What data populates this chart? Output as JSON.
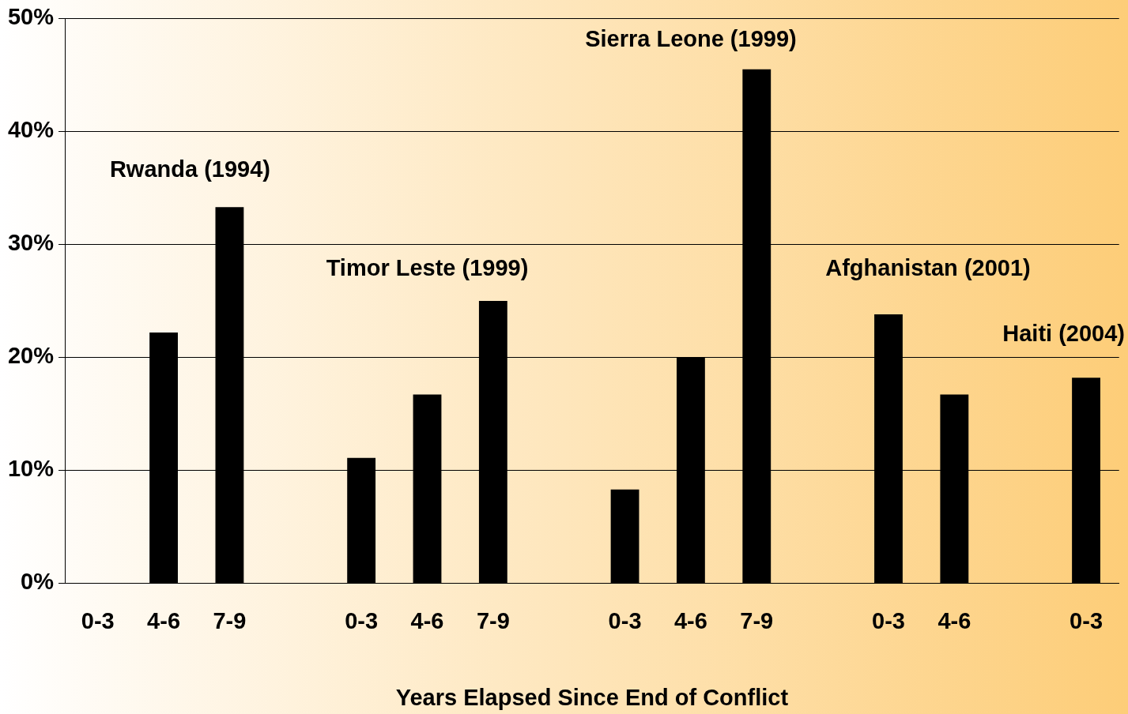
{
  "chart_data": {
    "type": "bar",
    "xlabel": "Years Elapsed Since End of Conflict",
    "categories": [
      "0-3",
      "4-6",
      "7-9",
      null,
      "0-3",
      "4-6",
      "7-9",
      null,
      "0-3",
      "4-6",
      "7-9",
      null,
      "0-3",
      "4-6",
      null,
      "0-3"
    ],
    "values": [
      null,
      22.2,
      33.3,
      null,
      11.1,
      16.7,
      25.0,
      null,
      8.3,
      20.0,
      45.5,
      null,
      23.8,
      16.7,
      null,
      18.2
    ],
    "color": "#000000",
    "ylim": [
      0,
      50
    ],
    "yticks": [
      {
        "value": 0,
        "label": "0%"
      },
      {
        "value": 10,
        "label": "10%"
      },
      {
        "value": 20,
        "label": "20%"
      },
      {
        "value": 30,
        "label": "30%"
      },
      {
        "value": 40,
        "label": "40%"
      },
      {
        "value": 50,
        "label": "50%"
      }
    ],
    "grid": "y",
    "annotations": [
      "Rwanda (1994)",
      "Timor Leste (1999)",
      "Sierra Leone (1999)",
      "Afghanistan (2001)",
      "Haiti (2004)"
    ]
  }
}
